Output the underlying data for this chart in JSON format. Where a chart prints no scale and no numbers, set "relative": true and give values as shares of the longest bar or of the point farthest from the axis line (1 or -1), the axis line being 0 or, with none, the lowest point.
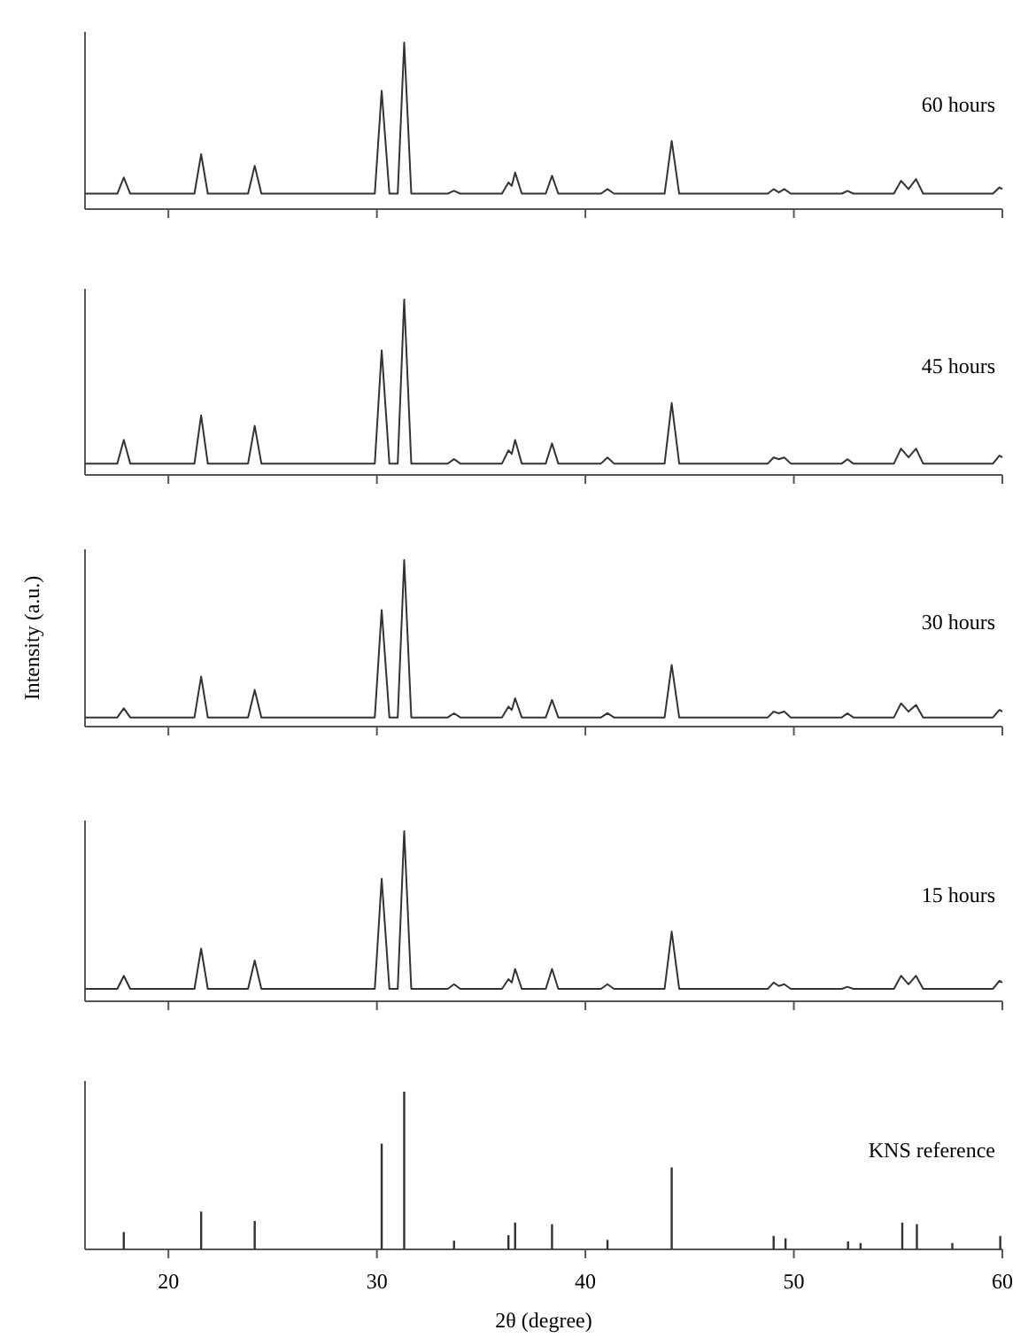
{
  "chart_data": [
    {
      "type": "line",
      "relative": true,
      "xlim": [
        16,
        60
      ],
      "xticks": [
        20,
        30,
        40,
        50,
        60
      ],
      "tick_labels": false,
      "series": [
        {
          "name": "60 hours",
          "color": "#333333",
          "x": [
            16,
            17.55,
            17.86,
            18.17,
            21.25,
            21.57,
            21.89,
            23.82,
            24.14,
            24.46,
            29.9,
            30.23,
            30.6,
            31.0,
            31.31,
            31.65,
            33.4,
            33.7,
            34.0,
            36.0,
            36.31,
            36.47,
            36.63,
            36.95,
            38.1,
            38.4,
            38.7,
            40.75,
            41.06,
            41.37,
            43.8,
            44.14,
            44.5,
            48.75,
            49.03,
            49.28,
            49.54,
            49.85,
            52.3,
            52.57,
            52.85,
            54.8,
            55.14,
            55.5,
            55.86,
            56.2,
            59.55,
            59.86,
            60
          ],
          "values": [
            0.093,
            0.093,
            0.19,
            0.093,
            0.093,
            0.33,
            0.093,
            0.093,
            0.26,
            0.093,
            0.093,
            0.71,
            0.093,
            0.093,
            1.0,
            0.093,
            0.093,
            0.11,
            0.093,
            0.093,
            0.16,
            0.14,
            0.22,
            0.093,
            0.093,
            0.2,
            0.093,
            0.093,
            0.12,
            0.093,
            0.093,
            0.41,
            0.093,
            0.093,
            0.12,
            0.1,
            0.12,
            0.093,
            0.093,
            0.11,
            0.093,
            0.093,
            0.17,
            0.12,
            0.18,
            0.093,
            0.093,
            0.13,
            0.12
          ]
        }
      ]
    },
    {
      "type": "line",
      "relative": true,
      "xlim": [
        16,
        60
      ],
      "xticks": [
        20,
        30,
        40,
        50,
        60
      ],
      "tick_labels": false,
      "series": [
        {
          "name": "45 hours",
          "color": "#333333",
          "x": [
            16,
            17.55,
            17.86,
            18.17,
            21.25,
            21.57,
            21.89,
            23.82,
            24.14,
            24.46,
            29.9,
            30.23,
            30.6,
            31.0,
            31.31,
            31.65,
            33.4,
            33.7,
            34.0,
            36.0,
            36.31,
            36.47,
            36.63,
            36.95,
            38.1,
            38.4,
            38.7,
            40.75,
            41.06,
            41.37,
            43.8,
            44.14,
            44.5,
            48.75,
            49.03,
            49.28,
            49.54,
            49.85,
            52.3,
            52.57,
            52.85,
            54.8,
            55.14,
            55.5,
            55.86,
            56.2,
            59.55,
            59.86,
            60
          ],
          "values": [
            0.065,
            0.065,
            0.2,
            0.065,
            0.065,
            0.34,
            0.065,
            0.065,
            0.28,
            0.065,
            0.065,
            0.71,
            0.065,
            0.065,
            1.0,
            0.065,
            0.065,
            0.09,
            0.065,
            0.065,
            0.14,
            0.12,
            0.2,
            0.065,
            0.065,
            0.18,
            0.065,
            0.065,
            0.1,
            0.065,
            0.065,
            0.41,
            0.065,
            0.065,
            0.1,
            0.09,
            0.1,
            0.065,
            0.065,
            0.09,
            0.065,
            0.065,
            0.15,
            0.1,
            0.15,
            0.065,
            0.065,
            0.11,
            0.1
          ]
        }
      ]
    },
    {
      "type": "line",
      "relative": true,
      "xlim": [
        16,
        60
      ],
      "xticks": [
        20,
        30,
        40,
        50,
        60
      ],
      "tick_labels": false,
      "ylabel": "Intensity (a.u.)",
      "series": [
        {
          "name": "30 hours",
          "color": "#333333",
          "x": [
            16,
            17.55,
            17.86,
            18.17,
            21.25,
            21.57,
            21.89,
            23.82,
            24.14,
            24.46,
            29.9,
            30.23,
            30.6,
            31.0,
            31.31,
            31.65,
            33.4,
            33.7,
            34.0,
            36.0,
            36.31,
            36.47,
            36.63,
            36.95,
            38.1,
            38.4,
            38.7,
            40.75,
            41.06,
            41.37,
            43.8,
            44.14,
            44.5,
            48.75,
            49.03,
            49.28,
            49.54,
            49.85,
            52.3,
            52.57,
            52.85,
            54.8,
            55.14,
            55.5,
            55.86,
            56.2,
            59.55,
            59.86,
            60
          ],
          "values": [
            0.055,
            0.055,
            0.11,
            0.055,
            0.055,
            0.3,
            0.055,
            0.055,
            0.22,
            0.055,
            0.055,
            0.7,
            0.055,
            0.055,
            1.0,
            0.055,
            0.055,
            0.08,
            0.055,
            0.055,
            0.12,
            0.1,
            0.17,
            0.055,
            0.055,
            0.16,
            0.055,
            0.055,
            0.08,
            0.055,
            0.055,
            0.37,
            0.055,
            0.055,
            0.09,
            0.08,
            0.09,
            0.055,
            0.055,
            0.08,
            0.055,
            0.055,
            0.14,
            0.09,
            0.13,
            0.055,
            0.055,
            0.1,
            0.09
          ]
        }
      ]
    },
    {
      "type": "line",
      "relative": true,
      "xlim": [
        16,
        60
      ],
      "xticks": [
        20,
        30,
        40,
        50,
        60
      ],
      "tick_labels": false,
      "series": [
        {
          "name": "15 hours",
          "color": "#333333",
          "x": [
            16,
            17.55,
            17.86,
            18.17,
            21.25,
            21.57,
            21.89,
            23.82,
            24.14,
            24.46,
            29.9,
            30.23,
            30.6,
            31.0,
            31.31,
            31.65,
            33.4,
            33.7,
            34.0,
            36.0,
            36.31,
            36.47,
            36.63,
            36.95,
            38.1,
            38.4,
            38.7,
            40.75,
            41.06,
            41.37,
            43.8,
            44.14,
            44.5,
            48.75,
            49.03,
            49.28,
            49.54,
            49.85,
            52.3,
            52.57,
            52.85,
            54.8,
            55.14,
            55.5,
            55.86,
            56.2,
            59.55,
            59.86,
            60
          ],
          "values": [
            0.073,
            0.073,
            0.15,
            0.073,
            0.073,
            0.31,
            0.073,
            0.073,
            0.24,
            0.073,
            0.073,
            0.72,
            0.073,
            0.073,
            1.0,
            0.073,
            0.073,
            0.1,
            0.073,
            0.073,
            0.13,
            0.11,
            0.19,
            0.073,
            0.073,
            0.19,
            0.073,
            0.073,
            0.1,
            0.073,
            0.073,
            0.41,
            0.073,
            0.073,
            0.11,
            0.09,
            0.1,
            0.073,
            0.073,
            0.085,
            0.073,
            0.073,
            0.15,
            0.1,
            0.15,
            0.073,
            0.073,
            0.12,
            0.11
          ]
        }
      ]
    },
    {
      "type": "bar",
      "relative": true,
      "xlim": [
        16,
        60
      ],
      "xticks": [
        20,
        30,
        40,
        50,
        60
      ],
      "tick_labels": "x",
      "xlabel": "2θ (degree)",
      "series": [
        {
          "name": "KNS reference",
          "color": "#333333",
          "x": [
            17.86,
            21.57,
            24.14,
            30.23,
            31.31,
            33.7,
            36.31,
            36.63,
            38.4,
            41.06,
            44.14,
            49.03,
            49.6,
            52.6,
            53.2,
            55.2,
            55.9,
            57.6,
            59.9
          ],
          "values": [
            0.11,
            0.24,
            0.18,
            0.67,
            1.0,
            0.055,
            0.09,
            0.17,
            0.16,
            0.06,
            0.52,
            0.085,
            0.07,
            0.05,
            0.04,
            0.17,
            0.16,
            0.04,
            0.085
          ]
        }
      ]
    }
  ]
}
